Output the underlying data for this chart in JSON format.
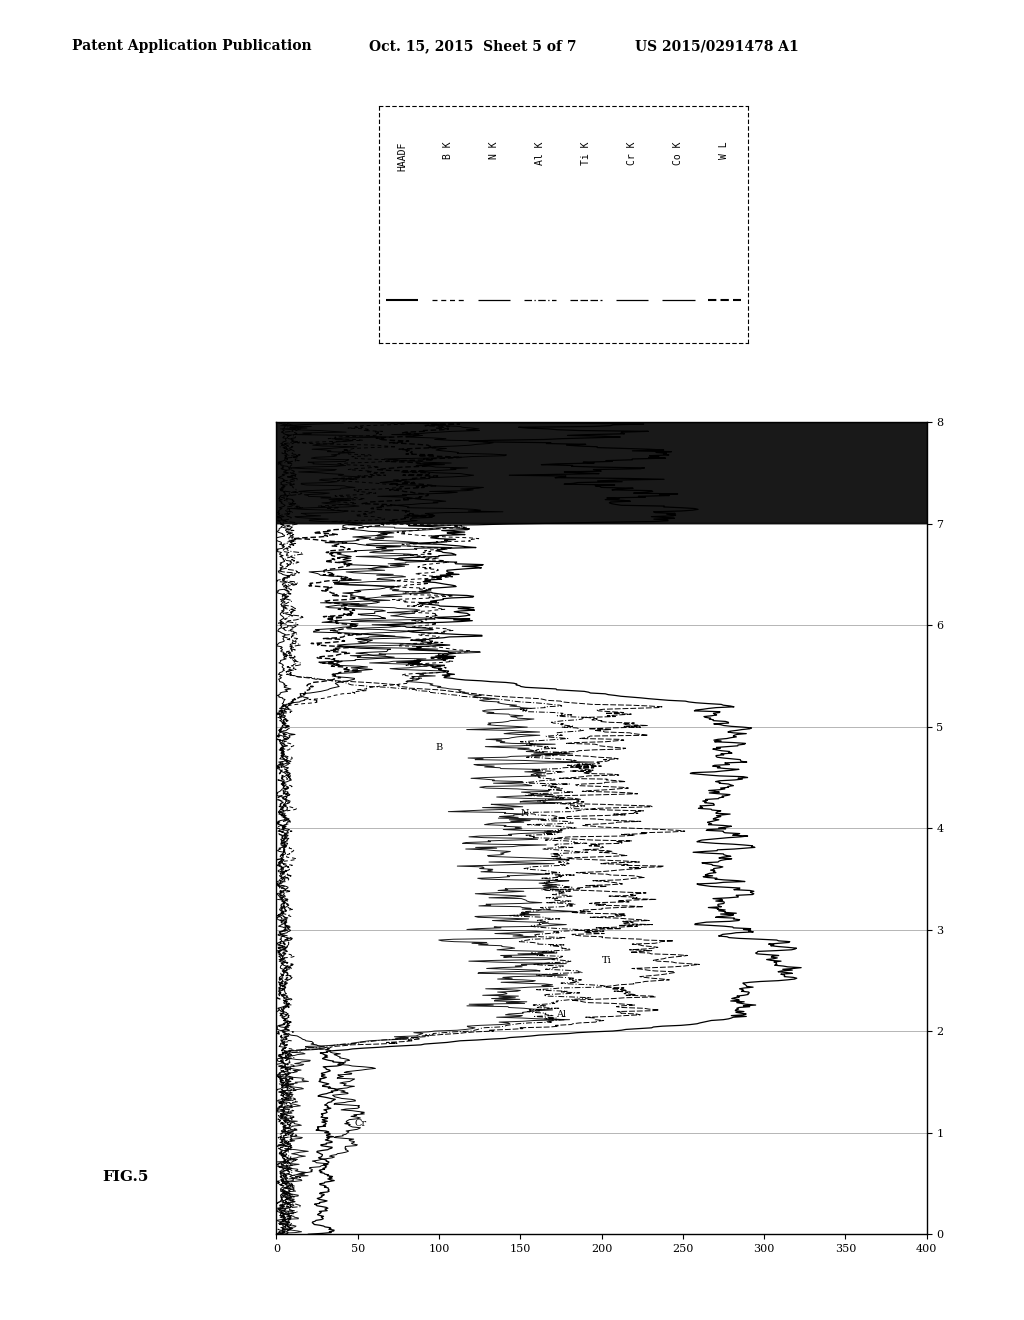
{
  "title": "FIG.5",
  "header_left": "Patent Application Publication",
  "header_mid": "Oct. 15, 2015  Sheet 5 of 7",
  "header_right": "US 2015/0291478 A1",
  "xlim": [
    0,
    400
  ],
  "ylim": [
    0,
    8
  ],
  "xticks": [
    0,
    50,
    100,
    150,
    200,
    250,
    300,
    350,
    400
  ],
  "yticks": [
    0,
    1,
    2,
    3,
    4,
    5,
    6,
    7,
    8
  ],
  "legend_entries": [
    "HAADF",
    "B K",
    "N K",
    "Al K",
    "Ti K",
    "Cr K",
    "Co K",
    "W L"
  ],
  "bg_color": "#ffffff",
  "line_color": "#000000"
}
